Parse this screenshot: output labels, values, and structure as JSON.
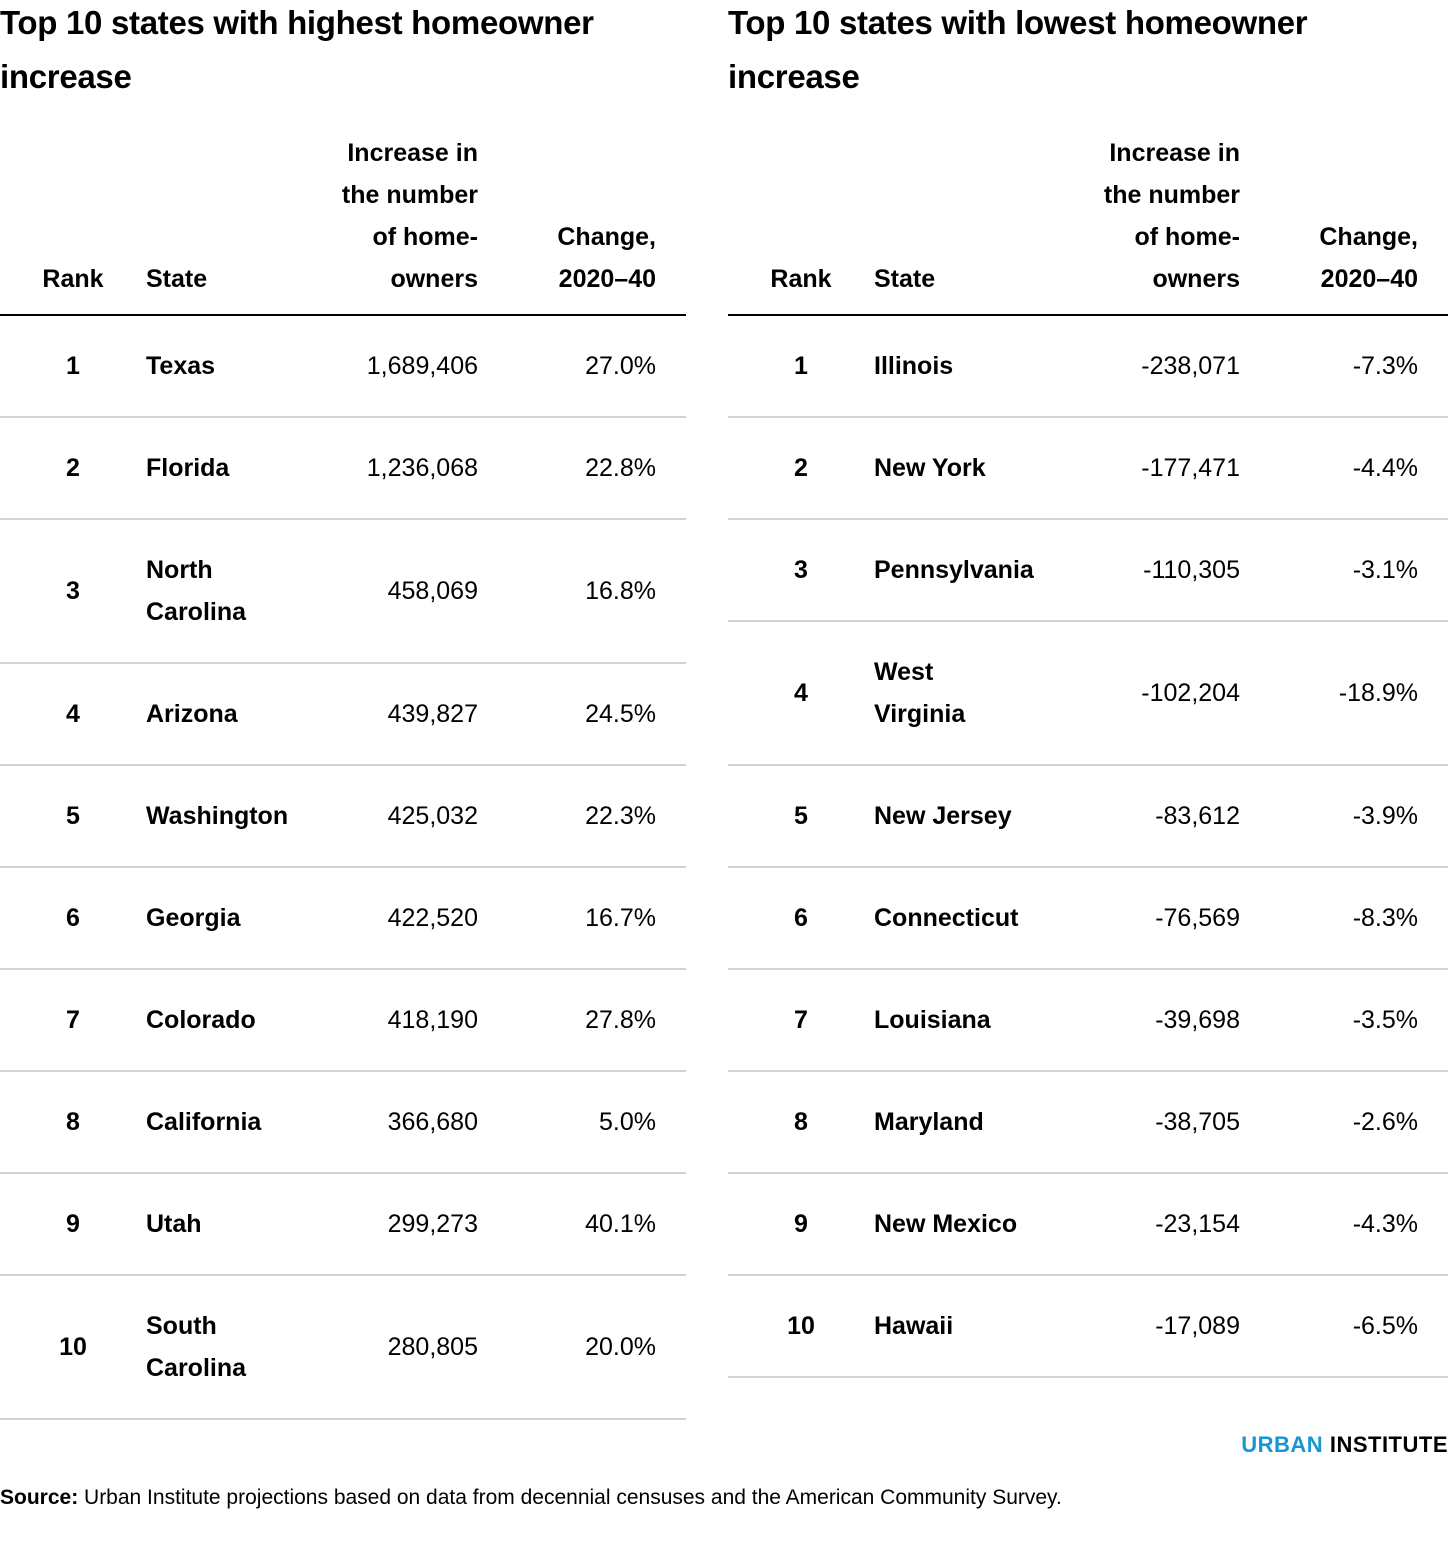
{
  "left": {
    "title": "Top 10 states with highest homeowner increase",
    "headers": {
      "rank": "Rank",
      "state": "State",
      "increase": [
        "Increase in",
        "the number",
        "of home-",
        "owners"
      ],
      "change": [
        "Change,",
        "2020–40"
      ]
    },
    "rows": [
      {
        "rank": "1",
        "state": [
          "Texas"
        ],
        "increase": "1,689,406",
        "change": "27.0%"
      },
      {
        "rank": "2",
        "state": [
          "Florida"
        ],
        "increase": "1,236,068",
        "change": "22.8%"
      },
      {
        "rank": "3",
        "state": [
          "North",
          "Carolina"
        ],
        "increase": "458,069",
        "change": "16.8%"
      },
      {
        "rank": "4",
        "state": [
          "Arizona"
        ],
        "increase": "439,827",
        "change": "24.5%"
      },
      {
        "rank": "5",
        "state": [
          "Washington"
        ],
        "increase": "425,032",
        "change": "22.3%"
      },
      {
        "rank": "6",
        "state": [
          "Georgia"
        ],
        "increase": "422,520",
        "change": "16.7%"
      },
      {
        "rank": "7",
        "state": [
          "Colorado"
        ],
        "increase": "418,190",
        "change": "27.8%"
      },
      {
        "rank": "8",
        "state": [
          "California"
        ],
        "increase": "366,680",
        "change": "5.0%"
      },
      {
        "rank": "9",
        "state": [
          "Utah"
        ],
        "increase": "299,273",
        "change": "40.1%"
      },
      {
        "rank": "10",
        "state": [
          "South",
          "Carolina"
        ],
        "increase": "280,805",
        "change": "20.0%"
      }
    ]
  },
  "right": {
    "title": "Top 10 states with lowest homeowner increase",
    "headers": {
      "rank": "Rank",
      "state": "State",
      "increase": [
        "Increase in",
        "the number",
        "of home-",
        "owners"
      ],
      "change": [
        "Change,",
        "2020–40"
      ]
    },
    "rows": [
      {
        "rank": "1",
        "state": [
          "Illinois"
        ],
        "increase": "-238,071",
        "change": "-7.3%"
      },
      {
        "rank": "2",
        "state": [
          "New York"
        ],
        "increase": "-177,471",
        "change": "-4.4%"
      },
      {
        "rank": "3",
        "state": [
          "Pennsylvania"
        ],
        "increase": "-110,305",
        "change": "-3.1%"
      },
      {
        "rank": "4",
        "state": [
          "West",
          "Virginia"
        ],
        "increase": "-102,204",
        "change": "-18.9%"
      },
      {
        "rank": "5",
        "state": [
          "New Jersey"
        ],
        "increase": "-83,612",
        "change": "-3.9%"
      },
      {
        "rank": "6",
        "state": [
          "Connecticut"
        ],
        "increase": "-76,569",
        "change": "-8.3%"
      },
      {
        "rank": "7",
        "state": [
          "Louisiana"
        ],
        "increase": "-39,698",
        "change": "-3.5%"
      },
      {
        "rank": "8",
        "state": [
          "Maryland"
        ],
        "increase": "-38,705",
        "change": "-2.6%"
      },
      {
        "rank": "9",
        "state": [
          "New Mexico"
        ],
        "increase": "-23,154",
        "change": "-4.3%"
      },
      {
        "rank": "10",
        "state": [
          "Hawaii"
        ],
        "increase": "-17,089",
        "change": "-6.5%"
      }
    ]
  },
  "brand": {
    "part1": "URBAN",
    "part2": "INSTITUTE",
    "accent_color": "#1696d2"
  },
  "source": {
    "label": "Source:",
    "text": " Urban Institute projections based on data from decennial censuses and the American Community Survey."
  }
}
